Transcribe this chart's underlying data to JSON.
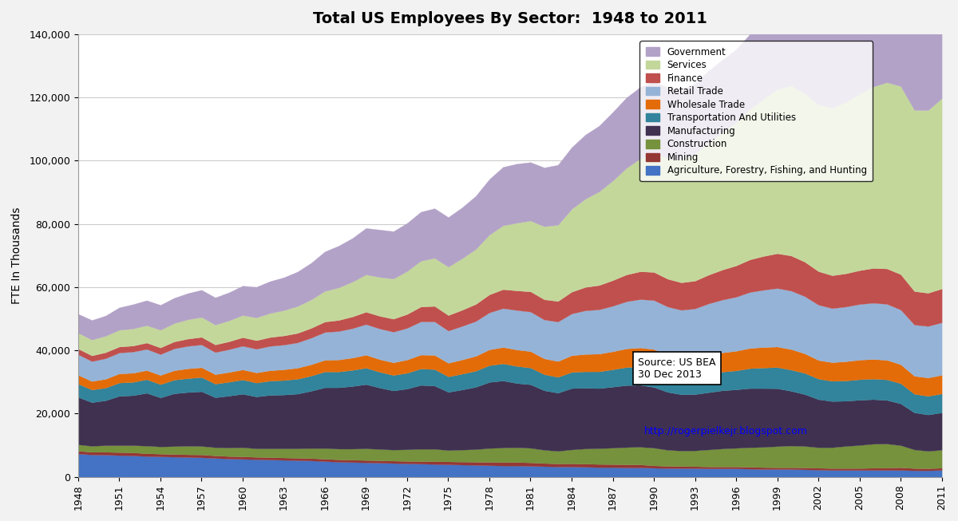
{
  "title": "Total US Employees By Sector:  1948 to 2011",
  "ylabel": "FTE In Thousands",
  "years": [
    1948,
    1949,
    1950,
    1951,
    1952,
    1953,
    1954,
    1955,
    1956,
    1957,
    1958,
    1959,
    1960,
    1961,
    1962,
    1963,
    1964,
    1965,
    1966,
    1967,
    1968,
    1969,
    1970,
    1971,
    1972,
    1973,
    1974,
    1975,
    1976,
    1977,
    1978,
    1979,
    1980,
    1981,
    1982,
    1983,
    1984,
    1985,
    1986,
    1987,
    1988,
    1989,
    1990,
    1991,
    1992,
    1993,
    1994,
    1995,
    1996,
    1997,
    1998,
    1999,
    2000,
    2001,
    2002,
    2003,
    2004,
    2005,
    2006,
    2007,
    2008,
    2009,
    2010,
    2011
  ],
  "sector_order": [
    "Agriculture, Forestry, Fishing, and Hunting",
    "Mining",
    "Construction",
    "Manufacturing",
    "Transportation And Utilities",
    "Wholesale Trade",
    "Retail Trade",
    "Finance",
    "Services",
    "Government"
  ],
  "sector_colors": [
    "#4472C4",
    "#953735",
    "#76923C",
    "#403151",
    "#31849B",
    "#E36C09",
    "#95B3D7",
    "#C0504D",
    "#C4D79B",
    "#B3A2C7"
  ],
  "sectors": {
    "Agriculture, Forestry, Fishing, and Hunting": [
      7300,
      7000,
      6950,
      6800,
      6700,
      6500,
      6400,
      6300,
      6200,
      6100,
      5900,
      5700,
      5600,
      5500,
      5400,
      5300,
      5200,
      5100,
      4900,
      4700,
      4600,
      4500,
      4400,
      4300,
      4200,
      4100,
      4000,
      3900,
      3800,
      3700,
      3600,
      3500,
      3500,
      3400,
      3300,
      3200,
      3200,
      3100,
      3000,
      3000,
      2900,
      2900,
      2800,
      2700,
      2700,
      2700,
      2600,
      2600,
      2600,
      2500,
      2400,
      2400,
      2400,
      2300,
      2200,
      2100,
      2100,
      2100,
      2100,
      2100,
      2100,
      2000,
      2000,
      2100
    ],
    "Mining": [
      900,
      850,
      900,
      950,
      950,
      900,
      850,
      850,
      850,
      900,
      800,
      800,
      800,
      750,
      750,
      750,
      750,
      750,
      750,
      750,
      750,
      750,
      750,
      750,
      750,
      800,
      900,
      900,
      950,
      1000,
      1050,
      1100,
      1100,
      1100,
      1000,
      950,
      1000,
      1000,
      1000,
      950,
      950,
      950,
      750,
      700,
      650,
      600,
      600,
      600,
      600,
      600,
      600,
      550,
      550,
      600,
      600,
      600,
      600,
      600,
      700,
      750,
      850,
      700,
      650,
      700
    ],
    "Construction": [
      2000,
      1900,
      2100,
      2200,
      2300,
      2400,
      2300,
      2500,
      2700,
      2700,
      2600,
      2700,
      2900,
      2700,
      2800,
      2900,
      3000,
      3200,
      3400,
      3400,
      3500,
      3700,
      3600,
      3500,
      3700,
      3900,
      3900,
      3600,
      3800,
      4000,
      4400,
      4600,
      4700,
      4600,
      4200,
      4000,
      4400,
      4800,
      5000,
      5200,
      5500,
      5600,
      5600,
      5100,
      4900,
      5000,
      5400,
      5700,
      5900,
      6200,
      6400,
      6700,
      6900,
      6800,
      6500,
      6600,
      7000,
      7300,
      7600,
      7600,
      7000,
      5900,
      5500,
      5700
    ],
    "Manufacturing": [
      15000,
      13800,
      14200,
      15600,
      15800,
      16700,
      15500,
      16700,
      17000,
      17300,
      15800,
      16400,
      16900,
      16400,
      16900,
      17000,
      17300,
      18100,
      19200,
      19400,
      19800,
      20300,
      19400,
      18700,
      19200,
      20200,
      20000,
      18400,
      19000,
      19700,
      20900,
      21200,
      20300,
      20100,
      18800,
      18400,
      19400,
      19200,
      19000,
      19300,
      19600,
      19600,
      19200,
      18300,
      17800,
      17800,
      18100,
      18400,
      18500,
      18700,
      18600,
      18300,
      17300,
      16400,
      15200,
      14600,
      14300,
      14300,
      14100,
      13800,
      13200,
      11700,
      11500,
      11800
    ],
    "Transportation And Utilities": [
      4200,
      4000,
      4000,
      4200,
      4200,
      4300,
      4200,
      4300,
      4400,
      4500,
      4300,
      4400,
      4500,
      4400,
      4500,
      4600,
      4700,
      4800,
      5000,
      5000,
      5100,
      5200,
      5000,
      4900,
      5000,
      5200,
      5200,
      4900,
      5000,
      5100,
      5300,
      5400,
      5400,
      5300,
      5100,
      5000,
      5100,
      5200,
      5300,
      5500,
      5700,
      5800,
      5900,
      5700,
      5600,
      5600,
      5800,
      5900,
      6000,
      6300,
      6500,
      6700,
      6700,
      6700,
      6500,
      6400,
      6400,
      6500,
      6500,
      6500,
      6400,
      5900,
      5900,
      6000
    ],
    "Wholesale Trade": [
      2800,
      2700,
      2800,
      2900,
      2900,
      2900,
      2900,
      3000,
      3100,
      3100,
      3000,
      3100,
      3200,
      3200,
      3300,
      3400,
      3500,
      3600,
      3700,
      3800,
      3900,
      4100,
      4000,
      4000,
      4200,
      4400,
      4500,
      4300,
      4500,
      4700,
      5000,
      5200,
      5200,
      5200,
      5000,
      5000,
      5300,
      5500,
      5600,
      5700,
      5900,
      6000,
      6100,
      5900,
      5800,
      5800,
      6000,
      6100,
      6200,
      6400,
      6500,
      6500,
      6500,
      6200,
      5900,
      5900,
      6100,
      6200,
      6200,
      6200,
      6000,
      5700,
      5800,
      5900
    ],
    "Retail Trade": [
      6500,
      6300,
      6500,
      6600,
      6700,
      6700,
      6600,
      6900,
      7100,
      7200,
      7000,
      7200,
      7500,
      7500,
      7700,
      7800,
      8000,
      8400,
      8800,
      9000,
      9300,
      9700,
      9700,
      9700,
      10000,
      10500,
      10600,
      10200,
      10600,
      11000,
      11700,
      12300,
      12500,
      12500,
      12300,
      12500,
      13200,
      13800,
      14000,
      14400,
      14900,
      15300,
      15500,
      15400,
      15300,
      15700,
      16300,
      16700,
      17100,
      17700,
      18100,
      18500,
      18500,
      18100,
      17500,
      17100,
      17300,
      17600,
      17800,
      17700,
      17300,
      16200,
      16300,
      16600
    ],
    "Finance": [
      1800,
      1800,
      1900,
      1900,
      1900,
      2000,
      2100,
      2200,
      2300,
      2400,
      2400,
      2500,
      2700,
      2700,
      2800,
      2900,
      3000,
      3100,
      3300,
      3500,
      3700,
      3900,
      4000,
      4100,
      4400,
      4700,
      4900,
      4900,
      5100,
      5400,
      5700,
      6000,
      6200,
      6400,
      6400,
      6500,
      6900,
      7400,
      7700,
      8100,
      8500,
      8800,
      8900,
      8800,
      8700,
      8800,
      9100,
      9500,
      9900,
      10300,
      10700,
      11000,
      11100,
      10900,
      10600,
      10400,
      10500,
      10700,
      11000,
      11200,
      11200,
      10600,
      10500,
      10700
    ],
    "Services": [
      5000,
      5000,
      5200,
      5300,
      5400,
      5500,
      5600,
      5800,
      6100,
      6300,
      6300,
      6600,
      7000,
      7200,
      7600,
      8000,
      8500,
      9000,
      9700,
      10300,
      11000,
      11800,
      12300,
      12700,
      13600,
      14500,
      15200,
      15300,
      16300,
      17400,
      18900,
      20200,
      21400,
      22400,
      23100,
      24100,
      26200,
      27900,
      29600,
      31500,
      33700,
      35700,
      37600,
      38100,
      38800,
      40100,
      41900,
      43500,
      45300,
      47600,
      49700,
      51900,
      53800,
      53300,
      52700,
      53000,
      54200,
      55700,
      57400,
      58900,
      59500,
      57300,
      57800,
      60200
    ],
    "Government": [
      6000,
      6200,
      6400,
      7100,
      7700,
      7900,
      7900,
      8000,
      8300,
      8600,
      8600,
      8900,
      9300,
      9700,
      10100,
      10400,
      10900,
      11600,
      12500,
      13200,
      13800,
      14700,
      15000,
      15000,
      15200,
      15500,
      15700,
      15700,
      16100,
      16800,
      17600,
      18500,
      18700,
      18500,
      18600,
      19000,
      19500,
      20300,
      20800,
      21700,
      22300,
      22600,
      22700,
      22400,
      22100,
      22300,
      22700,
      22900,
      23100,
      23700,
      24200,
      24700,
      25200,
      25400,
      25400,
      25500,
      25800,
      26200,
      26700,
      27200,
      27900,
      27400,
      27200,
      27600
    ]
  },
  "legend_order": [
    "Government",
    "Services",
    "Finance",
    "Retail Trade",
    "Wholesale Trade",
    "Transportation And Utilities",
    "Manufacturing",
    "Construction",
    "Mining",
    "Agriculture, Forestry, Fishing, and Hunting"
  ],
  "bg_color": "#F2F2F2",
  "plot_bg": "#FFFFFF",
  "ylim": [
    0,
    140000
  ],
  "ytick_step": 20000
}
